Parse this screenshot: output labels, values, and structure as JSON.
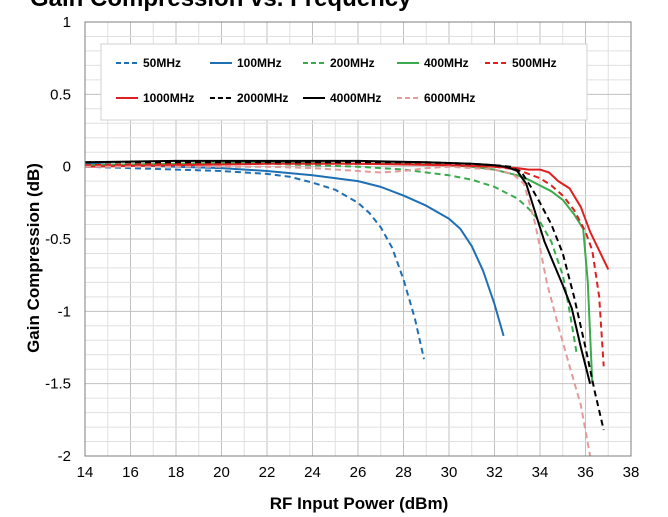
{
  "chart_data": {
    "type": "line",
    "title": "Gain Compression vs. Frequency",
    "xlabel": "RF Input Power (dBm)",
    "ylabel": "Gain Compression  (dB)",
    "xlim": [
      14,
      38
    ],
    "ylim": [
      -2,
      1
    ],
    "x_ticks": [
      14,
      16,
      18,
      20,
      22,
      24,
      26,
      28,
      30,
      32,
      34,
      36,
      38
    ],
    "x_tick_labels": [
      "14",
      "16",
      "18",
      "20",
      "22",
      "24",
      "26",
      "28",
      "30",
      "32",
      "34",
      "36",
      "38"
    ],
    "y_ticks": [
      1,
      0.5,
      0,
      -0.5,
      -1,
      -1.5,
      -2
    ],
    "y_tick_labels": [
      "1",
      "0.5",
      "0",
      "-0.5",
      "-1",
      "-1.5",
      "-2"
    ],
    "grid": true,
    "legend_position": "top",
    "series": [
      {
        "name": "50MHz",
        "color": "#1f6fb5",
        "dash": "dashed",
        "x": [
          14,
          16,
          18,
          20,
          22,
          23,
          24,
          25,
          26,
          26.5,
          27,
          27.5,
          28,
          28.5,
          28.9
        ],
        "y": [
          0.0,
          -0.01,
          -0.02,
          -0.03,
          -0.05,
          -0.07,
          -0.11,
          -0.16,
          -0.25,
          -0.32,
          -0.42,
          -0.56,
          -0.78,
          -1.05,
          -1.33
        ]
      },
      {
        "name": "100MHz",
        "color": "#1f6fb5",
        "dash": "solid",
        "x": [
          14,
          16,
          18,
          20,
          22,
          24,
          26,
          27,
          28,
          29,
          30,
          30.5,
          31,
          31.5,
          32,
          32.4
        ],
        "y": [
          0.02,
          0.01,
          0.0,
          -0.01,
          -0.03,
          -0.06,
          -0.1,
          -0.14,
          -0.2,
          -0.27,
          -0.36,
          -0.43,
          -0.55,
          -0.72,
          -0.95,
          -1.17
        ]
      },
      {
        "name": "200MHz",
        "color": "#3bab4e",
        "dash": "dashed",
        "x": [
          14,
          18,
          22,
          26,
          28,
          30,
          31,
          32,
          33,
          33.5,
          34,
          34.5,
          35,
          35.3,
          35.6
        ],
        "y": [
          0.01,
          0.02,
          0.02,
          0.0,
          -0.02,
          -0.06,
          -0.09,
          -0.14,
          -0.22,
          -0.29,
          -0.38,
          -0.52,
          -0.75,
          -1.0,
          -1.28
        ]
      },
      {
        "name": "400MHz",
        "color": "#3bab4e",
        "dash": "solid",
        "x": [
          14,
          18,
          22,
          26,
          28,
          30,
          31,
          32,
          33,
          33.5,
          34,
          34.5,
          35,
          35.5,
          35.9,
          36.1,
          36.3
        ],
        "y": [
          0.01,
          0.02,
          0.03,
          0.02,
          0.02,
          0.01,
          0.0,
          -0.02,
          -0.06,
          -0.09,
          -0.13,
          -0.17,
          -0.23,
          -0.33,
          -0.43,
          -0.8,
          -1.5
        ]
      },
      {
        "name": "500MHz",
        "color": "#e02020",
        "dash": "dashed",
        "x": [
          14,
          18,
          22,
          26,
          29,
          31,
          32,
          33,
          33.5,
          34,
          34.5,
          35,
          35.5,
          36,
          36.3,
          36.6,
          36.8
        ],
        "y": [
          0.01,
          0.02,
          0.03,
          0.02,
          0.02,
          0.01,
          0.0,
          -0.02,
          -0.05,
          -0.08,
          -0.13,
          -0.2,
          -0.3,
          -0.45,
          -0.58,
          -0.9,
          -1.38
        ]
      },
      {
        "name": "1000MHz",
        "color": "#e02020",
        "dash": "solid",
        "x": [
          14,
          18,
          22,
          26,
          30,
          32,
          33,
          33.5,
          34,
          34.4,
          34.8,
          35.3,
          35.8,
          36.2,
          36.6,
          37.0
        ],
        "y": [
          0.0,
          0.01,
          0.02,
          0.02,
          0.01,
          0.0,
          -0.01,
          -0.02,
          -0.02,
          -0.04,
          -0.1,
          -0.15,
          -0.28,
          -0.45,
          -0.58,
          -0.71
        ]
      },
      {
        "name": "2000MHz",
        "color": "#000000",
        "dash": "dashed",
        "x": [
          14,
          18,
          22,
          26,
          29,
          31,
          32,
          32.7,
          33.2,
          33.6,
          34,
          34.5,
          35,
          35.5,
          36,
          36.4,
          36.8
        ],
        "y": [
          0.03,
          0.03,
          0.03,
          0.03,
          0.03,
          0.02,
          0.01,
          0.0,
          -0.04,
          -0.14,
          -0.25,
          -0.4,
          -0.6,
          -0.9,
          -1.25,
          -1.55,
          -1.82
        ]
      },
      {
        "name": "4000MHz",
        "color": "#000000",
        "dash": "solid",
        "x": [
          14,
          18,
          22,
          26,
          29,
          31,
          32,
          32.5,
          33,
          33.4,
          33.8,
          34.2,
          34.6,
          35,
          35.4,
          35.8,
          36.2
        ],
        "y": [
          0.03,
          0.04,
          0.04,
          0.04,
          0.03,
          0.02,
          0.01,
          0.0,
          -0.03,
          -0.12,
          -0.32,
          -0.52,
          -0.67,
          -0.82,
          -0.98,
          -1.25,
          -1.5
        ]
      },
      {
        "name": "6000MHz",
        "color": "#e39a9a",
        "dash": "dashed",
        "x": [
          14,
          18,
          22,
          24,
          26,
          27,
          28,
          29,
          30,
          31,
          32,
          32.8,
          33.3,
          33.8,
          34.3,
          34.8,
          35.3,
          35.8,
          36.2
        ],
        "y": [
          0.0,
          0.0,
          0.0,
          -0.01,
          -0.03,
          -0.04,
          -0.03,
          -0.01,
          0.0,
          -0.01,
          -0.02,
          -0.05,
          -0.12,
          -0.4,
          -0.8,
          -1.1,
          -1.38,
          -1.65,
          -2.0
        ]
      }
    ]
  }
}
